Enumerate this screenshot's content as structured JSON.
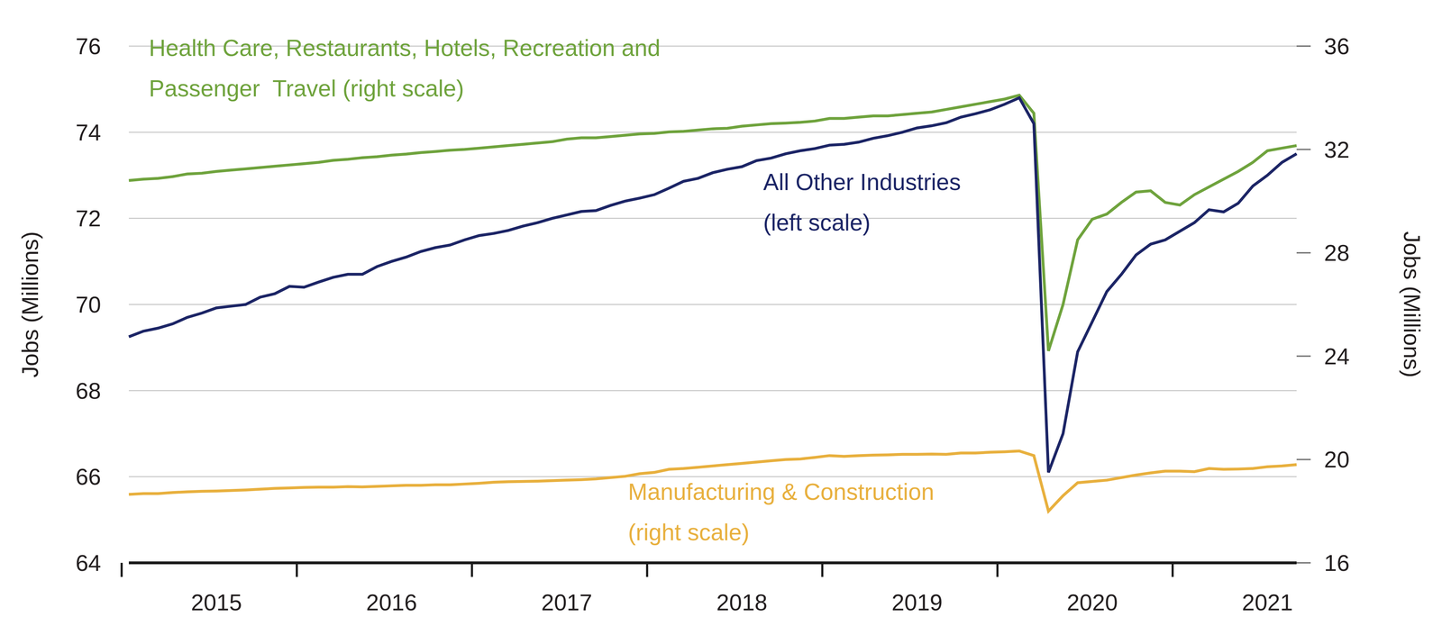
{
  "chart_data": {
    "type": "line",
    "ylabel": "Jobs (Millions)",
    "y2label": "Jobs (Millions)",
    "categories": [
      null,
      null,
      null,
      null,
      null,
      null,
      "2015",
      null,
      null,
      null,
      null,
      null,
      null,
      null,
      null,
      null,
      null,
      null,
      "2016",
      null,
      null,
      null,
      null,
      null,
      null,
      null,
      null,
      null,
      null,
      null,
      "2017",
      null,
      null,
      null,
      null,
      null,
      null,
      null,
      null,
      null,
      null,
      null,
      "2018",
      null,
      null,
      null,
      null,
      null,
      null,
      null,
      null,
      null,
      null,
      null,
      "2019",
      null,
      null,
      null,
      null,
      null,
      null,
      null,
      null,
      null,
      null,
      null,
      "2020",
      null,
      null,
      null,
      null,
      null,
      null,
      null,
      null,
      null,
      null,
      null,
      "2021",
      null,
      null
    ],
    "ylim": [
      64,
      76
    ],
    "yticks": [
      64,
      66,
      68,
      70,
      72,
      74,
      76
    ],
    "y2lim": [
      16,
      36
    ],
    "y2ticks": [
      16,
      20,
      24,
      28,
      32,
      36
    ],
    "grid": true,
    "series": [
      {
        "name": "Health Care, Restaurants, Hotels, Recreation and\nPassenger  Travel (right scale)",
        "color": "#6fa33d",
        "axis": "y2",
        "values": [
          30.8,
          30.85,
          30.88,
          30.95,
          31.05,
          31.08,
          31.15,
          31.2,
          31.25,
          31.3,
          31.35,
          31.4,
          31.45,
          31.5,
          31.58,
          31.62,
          31.68,
          31.72,
          31.78,
          31.82,
          31.88,
          31.92,
          31.97,
          32.0,
          32.05,
          32.1,
          32.15,
          32.2,
          32.25,
          32.3,
          32.4,
          32.45,
          32.45,
          32.5,
          32.55,
          32.6,
          32.62,
          32.68,
          32.7,
          32.75,
          32.8,
          32.82,
          32.9,
          32.95,
          33.0,
          33.02,
          33.05,
          33.1,
          33.2,
          33.2,
          33.25,
          33.3,
          33.3,
          33.35,
          33.4,
          33.45,
          33.55,
          33.65,
          33.75,
          33.85,
          33.95,
          34.1,
          33.4,
          24.2,
          26.0,
          28.5,
          29.3,
          29.5,
          29.95,
          30.35,
          30.4,
          29.95,
          29.85,
          30.25,
          30.55,
          30.85,
          31.15,
          31.5,
          31.95,
          32.05,
          32.15
        ]
      },
      {
        "name": "All Other Industries\n(left scale)",
        "color": "#1c2566",
        "axis": "y",
        "values": [
          69.25,
          69.38,
          69.45,
          69.55,
          69.7,
          69.8,
          69.92,
          69.96,
          70.0,
          70.17,
          70.25,
          70.42,
          70.4,
          70.52,
          70.63,
          70.7,
          70.7,
          70.88,
          71.0,
          71.1,
          71.23,
          71.32,
          71.38,
          71.5,
          71.6,
          71.65,
          71.72,
          71.82,
          71.9,
          72.0,
          72.08,
          72.16,
          72.18,
          72.3,
          72.4,
          72.47,
          72.55,
          72.7,
          72.86,
          72.93,
          73.06,
          73.14,
          73.2,
          73.34,
          73.4,
          73.5,
          73.57,
          73.62,
          73.7,
          73.72,
          73.77,
          73.86,
          73.92,
          74.0,
          74.1,
          74.15,
          74.22,
          74.35,
          74.43,
          74.52,
          74.65,
          74.8,
          74.2,
          66.1,
          67.0,
          68.9,
          69.6,
          70.3,
          70.7,
          71.15,
          71.4,
          71.5,
          71.7,
          71.9,
          72.2,
          72.15,
          72.35,
          72.75,
          73.0,
          73.3,
          73.5
        ]
      },
      {
        "name": "Manufacturing & Construction\n(right scale)",
        "color": "#e8b03e",
        "axis": "y2",
        "values": [
          18.65,
          18.68,
          18.68,
          18.72,
          18.75,
          18.77,
          18.78,
          18.8,
          18.82,
          18.85,
          18.88,
          18.9,
          18.92,
          18.93,
          18.93,
          18.95,
          18.94,
          18.96,
          18.98,
          19.0,
          19.0,
          19.02,
          19.02,
          19.05,
          19.08,
          19.12,
          19.14,
          19.15,
          19.16,
          19.18,
          19.2,
          19.22,
          19.25,
          19.3,
          19.35,
          19.45,
          19.5,
          19.62,
          19.65,
          19.7,
          19.75,
          19.8,
          19.85,
          19.9,
          19.95,
          20.0,
          20.02,
          20.08,
          20.15,
          20.12,
          20.15,
          20.17,
          20.18,
          20.2,
          20.2,
          20.21,
          20.2,
          20.25,
          20.25,
          20.28,
          20.3,
          20.33,
          20.15,
          18.0,
          18.6,
          19.1,
          19.15,
          19.2,
          19.3,
          19.4,
          19.48,
          19.55,
          19.55,
          19.53,
          19.65,
          19.62,
          19.63,
          19.65,
          19.72,
          19.75,
          19.8
        ]
      }
    ]
  }
}
